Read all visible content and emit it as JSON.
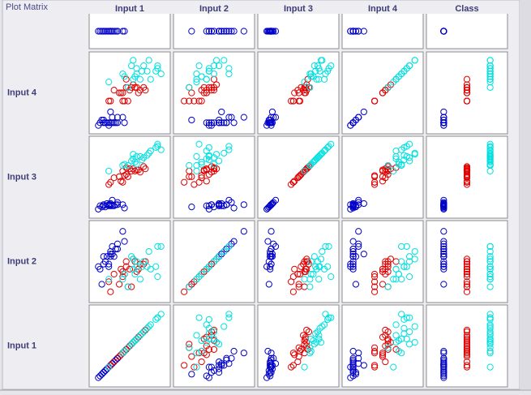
{
  "chart_data": {
    "type": "scatter_matrix",
    "title": "Plot Matrix",
    "variables": [
      {
        "name": "Input 1",
        "lim": [
          4.1,
          8.1
        ]
      },
      {
        "name": "Input 2",
        "lim": [
          1.8,
          4.6
        ]
      },
      {
        "name": "Input 3",
        "lim": [
          0.8,
          7.1
        ]
      },
      {
        "name": "Input 4",
        "lim": [
          0.0,
          2.6
        ]
      },
      {
        "name": "Class",
        "lim": [
          0.5,
          3.5
        ]
      }
    ],
    "columns": [
      0,
      1,
      2,
      3,
      4
    ],
    "rows": [
      4,
      3,
      2,
      1,
      0
    ],
    "class_colors": [
      "#0000c8",
      "#e00000",
      "#00e0e0"
    ],
    "records": [
      [
        5.1,
        3.5,
        1.4,
        0.2,
        1
      ],
      [
        4.9,
        3.0,
        1.4,
        0.2,
        1
      ],
      [
        4.7,
        3.2,
        1.3,
        0.2,
        1
      ],
      [
        4.6,
        3.1,
        1.5,
        0.2,
        1
      ],
      [
        5.0,
        3.6,
        1.4,
        0.2,
        1
      ],
      [
        5.4,
        3.9,
        1.7,
        0.4,
        1
      ],
      [
        4.6,
        3.4,
        1.4,
        0.3,
        1
      ],
      [
        5.0,
        3.4,
        1.5,
        0.2,
        1
      ],
      [
        4.4,
        2.9,
        1.4,
        0.2,
        1
      ],
      [
        4.9,
        3.1,
        1.5,
        0.1,
        1
      ],
      [
        5.4,
        3.7,
        1.5,
        0.2,
        1
      ],
      [
        4.8,
        3.4,
        1.6,
        0.2,
        1
      ],
      [
        4.3,
        3.0,
        1.1,
        0.1,
        1
      ],
      [
        5.8,
        4.0,
        1.2,
        0.2,
        1
      ],
      [
        5.7,
        4.4,
        1.5,
        0.4,
        1
      ],
      [
        5.1,
        3.8,
        1.9,
        0.4,
        1
      ],
      [
        5.2,
        3.4,
        1.4,
        0.2,
        1
      ],
      [
        4.5,
        2.3,
        1.3,
        0.3,
        1
      ],
      [
        5.0,
        3.5,
        1.6,
        0.6,
        1
      ],
      [
        5.3,
        3.7,
        1.5,
        0.2,
        1
      ],
      [
        7.0,
        3.2,
        4.7,
        1.4,
        2
      ],
      [
        6.4,
        3.2,
        4.5,
        1.5,
        2
      ],
      [
        6.9,
        3.1,
        4.9,
        1.5,
        2
      ],
      [
        5.5,
        2.3,
        4.0,
        1.3,
        2
      ],
      [
        6.5,
        2.8,
        4.6,
        1.5,
        2
      ],
      [
        5.7,
        2.8,
        4.5,
        1.3,
        2
      ],
      [
        6.3,
        3.3,
        4.7,
        1.6,
        2
      ],
      [
        4.9,
        2.4,
        3.3,
        1.0,
        2
      ],
      [
        6.6,
        2.9,
        4.6,
        1.3,
        2
      ],
      [
        5.2,
        2.7,
        3.9,
        1.4,
        2
      ],
      [
        5.0,
        2.0,
        3.5,
        1.0,
        2
      ],
      [
        5.9,
        3.0,
        4.2,
        1.5,
        2
      ],
      [
        6.0,
        2.2,
        4.0,
        1.0,
        2
      ],
      [
        6.1,
        2.9,
        4.7,
        1.4,
        2
      ],
      [
        5.6,
        2.9,
        3.6,
        1.3,
        2
      ],
      [
        6.7,
        3.1,
        4.4,
        1.4,
        2
      ],
      [
        5.8,
        2.7,
        4.1,
        1.0,
        2
      ],
      [
        6.2,
        2.2,
        4.5,
        1.5,
        2
      ],
      [
        5.9,
        3.2,
        4.8,
        1.8,
        2
      ],
      [
        5.7,
        2.6,
        3.5,
        1.0,
        2
      ],
      [
        6.3,
        3.3,
        6.0,
        2.5,
        3
      ],
      [
        5.8,
        2.7,
        5.1,
        1.9,
        3
      ],
      [
        7.1,
        3.0,
        5.9,
        2.1,
        3
      ],
      [
        6.3,
        2.9,
        5.6,
        1.8,
        3
      ],
      [
        6.5,
        3.0,
        5.8,
        2.2,
        3
      ],
      [
        7.6,
        3.0,
        6.6,
        2.1,
        3
      ],
      [
        4.9,
        2.5,
        4.5,
        1.7,
        3
      ],
      [
        7.3,
        2.9,
        6.3,
        1.8,
        3
      ],
      [
        6.7,
        2.5,
        5.8,
        1.8,
        3
      ],
      [
        7.2,
        3.6,
        6.1,
        2.5,
        3
      ],
      [
        6.5,
        3.2,
        5.1,
        2.0,
        3
      ],
      [
        6.4,
        2.7,
        5.3,
        1.9,
        3
      ],
      [
        6.8,
        3.0,
        5.5,
        2.1,
        3
      ],
      [
        5.7,
        2.5,
        5.0,
        2.0,
        3
      ],
      [
        7.7,
        3.8,
        6.7,
        2.2,
        3
      ],
      [
        7.7,
        2.6,
        6.9,
        2.3,
        3
      ],
      [
        6.0,
        2.2,
        5.0,
        1.5,
        3
      ],
      [
        6.9,
        3.2,
        5.7,
        2.3,
        3
      ],
      [
        7.9,
        3.8,
        6.4,
        2.0,
        3
      ],
      [
        6.2,
        3.4,
        5.4,
        2.3,
        3
      ]
    ]
  }
}
